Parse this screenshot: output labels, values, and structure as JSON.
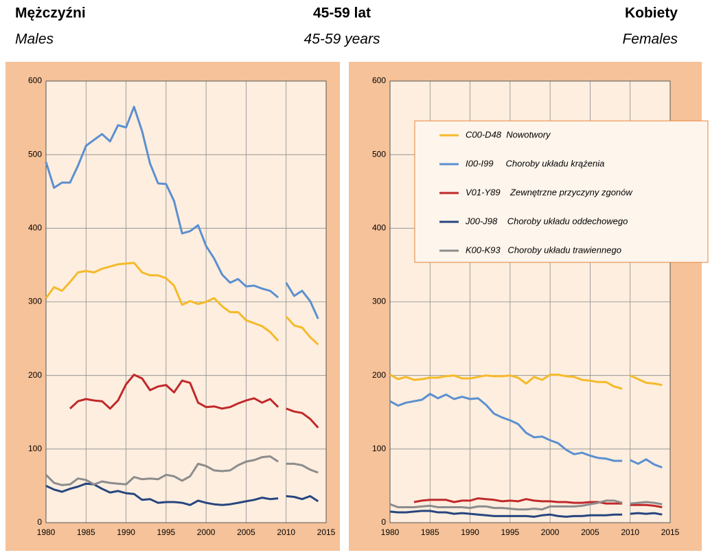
{
  "header": {
    "left_title": "Mężczyźni",
    "left_subtitle": "Males",
    "center_title": "45-59 lat",
    "center_subtitle": "45-59 years",
    "right_title": "Kobiety",
    "right_subtitle": "Females"
  },
  "chart_data": [
    {
      "type": "line",
      "x": [
        1980,
        1981,
        1982,
        1983,
        1984,
        1985,
        1986,
        1987,
        1988,
        1989,
        1990,
        1991,
        1992,
        1993,
        1994,
        1995,
        1996,
        1997,
        1998,
        1999,
        2000,
        2001,
        2002,
        2003,
        2004,
        2005,
        2006,
        2007,
        2008,
        2009,
        null,
        2010,
        2011,
        2012,
        2013,
        2014
      ],
      "xlim": [
        1980,
        2015
      ],
      "xticks": [
        1980,
        1985,
        1990,
        1995,
        2000,
        2005,
        2010,
        2015
      ],
      "ylim": [
        0,
        600
      ],
      "yticks": [
        0,
        100,
        200,
        300,
        400,
        500,
        600
      ],
      "grid": true,
      "series": [
        {
          "color": "#F5BA2A",
          "values": [
            305,
            320,
            315,
            327,
            340,
            342,
            340,
            345,
            348,
            351,
            352,
            353,
            340,
            336,
            336,
            332,
            322,
            296,
            301,
            297,
            300,
            305,
            294,
            286,
            286,
            275,
            271,
            267,
            259,
            247,
            null,
            280,
            268,
            265,
            252,
            242
          ]
        },
        {
          "color": "#5B8FD0",
          "values": [
            490,
            455,
            462,
            462,
            485,
            512,
            520,
            528,
            518,
            540,
            537,
            565,
            532,
            488,
            461,
            460,
            437,
            393,
            396,
            404,
            376,
            359,
            337,
            326,
            331,
            321,
            322,
            318,
            315,
            306,
            null,
            326,
            308,
            315,
            301,
            277
          ]
        },
        {
          "color": "#C0282A",
          "values": [
            null,
            null,
            null,
            155,
            165,
            168,
            166,
            165,
            155,
            166,
            188,
            201,
            196,
            180,
            185,
            187,
            177,
            193,
            190,
            163,
            157,
            158,
            155,
            157,
            162,
            166,
            169,
            163,
            168,
            157,
            null,
            155,
            151,
            149,
            141,
            129
          ]
        },
        {
          "color": "#27457E",
          "values": [
            50,
            45,
            42,
            46,
            49,
            53,
            52,
            46,
            41,
            43,
            40,
            39,
            31,
            32,
            27,
            28,
            28,
            27,
            24,
            30,
            27,
            25,
            24,
            25,
            27,
            29,
            31,
            34,
            32,
            33,
            null,
            36,
            35,
            32,
            36,
            29
          ]
        },
        {
          "color": "#8C8C8C",
          "values": [
            65,
            54,
            51,
            52,
            60,
            58,
            52,
            56,
            54,
            53,
            52,
            62,
            59,
            60,
            59,
            65,
            63,
            57,
            63,
            80,
            77,
            71,
            70,
            71,
            78,
            83,
            85,
            89,
            90,
            83,
            null,
            80,
            80,
            78,
            72,
            68
          ]
        }
      ]
    },
    {
      "type": "line",
      "x": [
        1980,
        1981,
        1982,
        1983,
        1984,
        1985,
        1986,
        1987,
        1988,
        1989,
        1990,
        1991,
        1992,
        1993,
        1994,
        1995,
        1996,
        1997,
        1998,
        1999,
        2000,
        2001,
        2002,
        2003,
        2004,
        2005,
        2006,
        2007,
        2008,
        2009,
        null,
        2010,
        2011,
        2012,
        2013,
        2014
      ],
      "xlim": [
        1980,
        2015
      ],
      "xticks": [
        1980,
        1985,
        1990,
        1995,
        2000,
        2005,
        2010,
        2015
      ],
      "ylim": [
        0,
        600
      ],
      "yticks": [
        0,
        100,
        200,
        300,
        400,
        500,
        600
      ],
      "grid": true,
      "legend": "upper right",
      "series": [
        {
          "name": "C00-D48  Nowotwory",
          "color": "#F5BA2A",
          "values": [
            201,
            195,
            198,
            194,
            195,
            197,
            197,
            199,
            200,
            196,
            196,
            198,
            200,
            199,
            199,
            200,
            197,
            189,
            198,
            194,
            201,
            201,
            199,
            198,
            194,
            193,
            191,
            191,
            185,
            182,
            null,
            200,
            195,
            190,
            189,
            187
          ]
        },
        {
          "name": "I00-I99     Choroby układu krążenia",
          "color": "#5B8FD0",
          "values": [
            165,
            159,
            163,
            165,
            167,
            175,
            169,
            174,
            168,
            171,
            168,
            169,
            160,
            148,
            143,
            139,
            134,
            122,
            116,
            117,
            112,
            108,
            99,
            93,
            95,
            91,
            88,
            87,
            84,
            84,
            null,
            85,
            80,
            86,
            79,
            75
          ]
        },
        {
          "name": "V01-Y89    Zewnętrzne przyczyny zgonów",
          "color": "#C0282A",
          "values": [
            null,
            null,
            null,
            28,
            30,
            31,
            31,
            31,
            28,
            30,
            30,
            33,
            32,
            31,
            29,
            30,
            29,
            32,
            30,
            29,
            29,
            28,
            28,
            27,
            27,
            28,
            28,
            26,
            26,
            26,
            null,
            24,
            24,
            24,
            23,
            21
          ]
        },
        {
          "name": "J00-J98    Choroby układu oddechowego",
          "color": "#27457E",
          "values": [
            15,
            14,
            14,
            15,
            16,
            16,
            14,
            14,
            12,
            13,
            12,
            11,
            10,
            9,
            9,
            9,
            9,
            9,
            8,
            10,
            11,
            9,
            8,
            9,
            9,
            10,
            10,
            10,
            11,
            11,
            null,
            12,
            13,
            12,
            13,
            11
          ]
        },
        {
          "name": "K00-K93   Choroby układu trawiennego",
          "color": "#8C8C8C",
          "values": [
            25,
            21,
            21,
            21,
            22,
            23,
            21,
            21,
            21,
            21,
            20,
            22,
            22,
            20,
            20,
            19,
            18,
            18,
            19,
            18,
            22,
            22,
            22,
            22,
            23,
            25,
            27,
            30,
            30,
            27,
            null,
            26,
            27,
            28,
            27,
            25
          ]
        }
      ]
    }
  ]
}
